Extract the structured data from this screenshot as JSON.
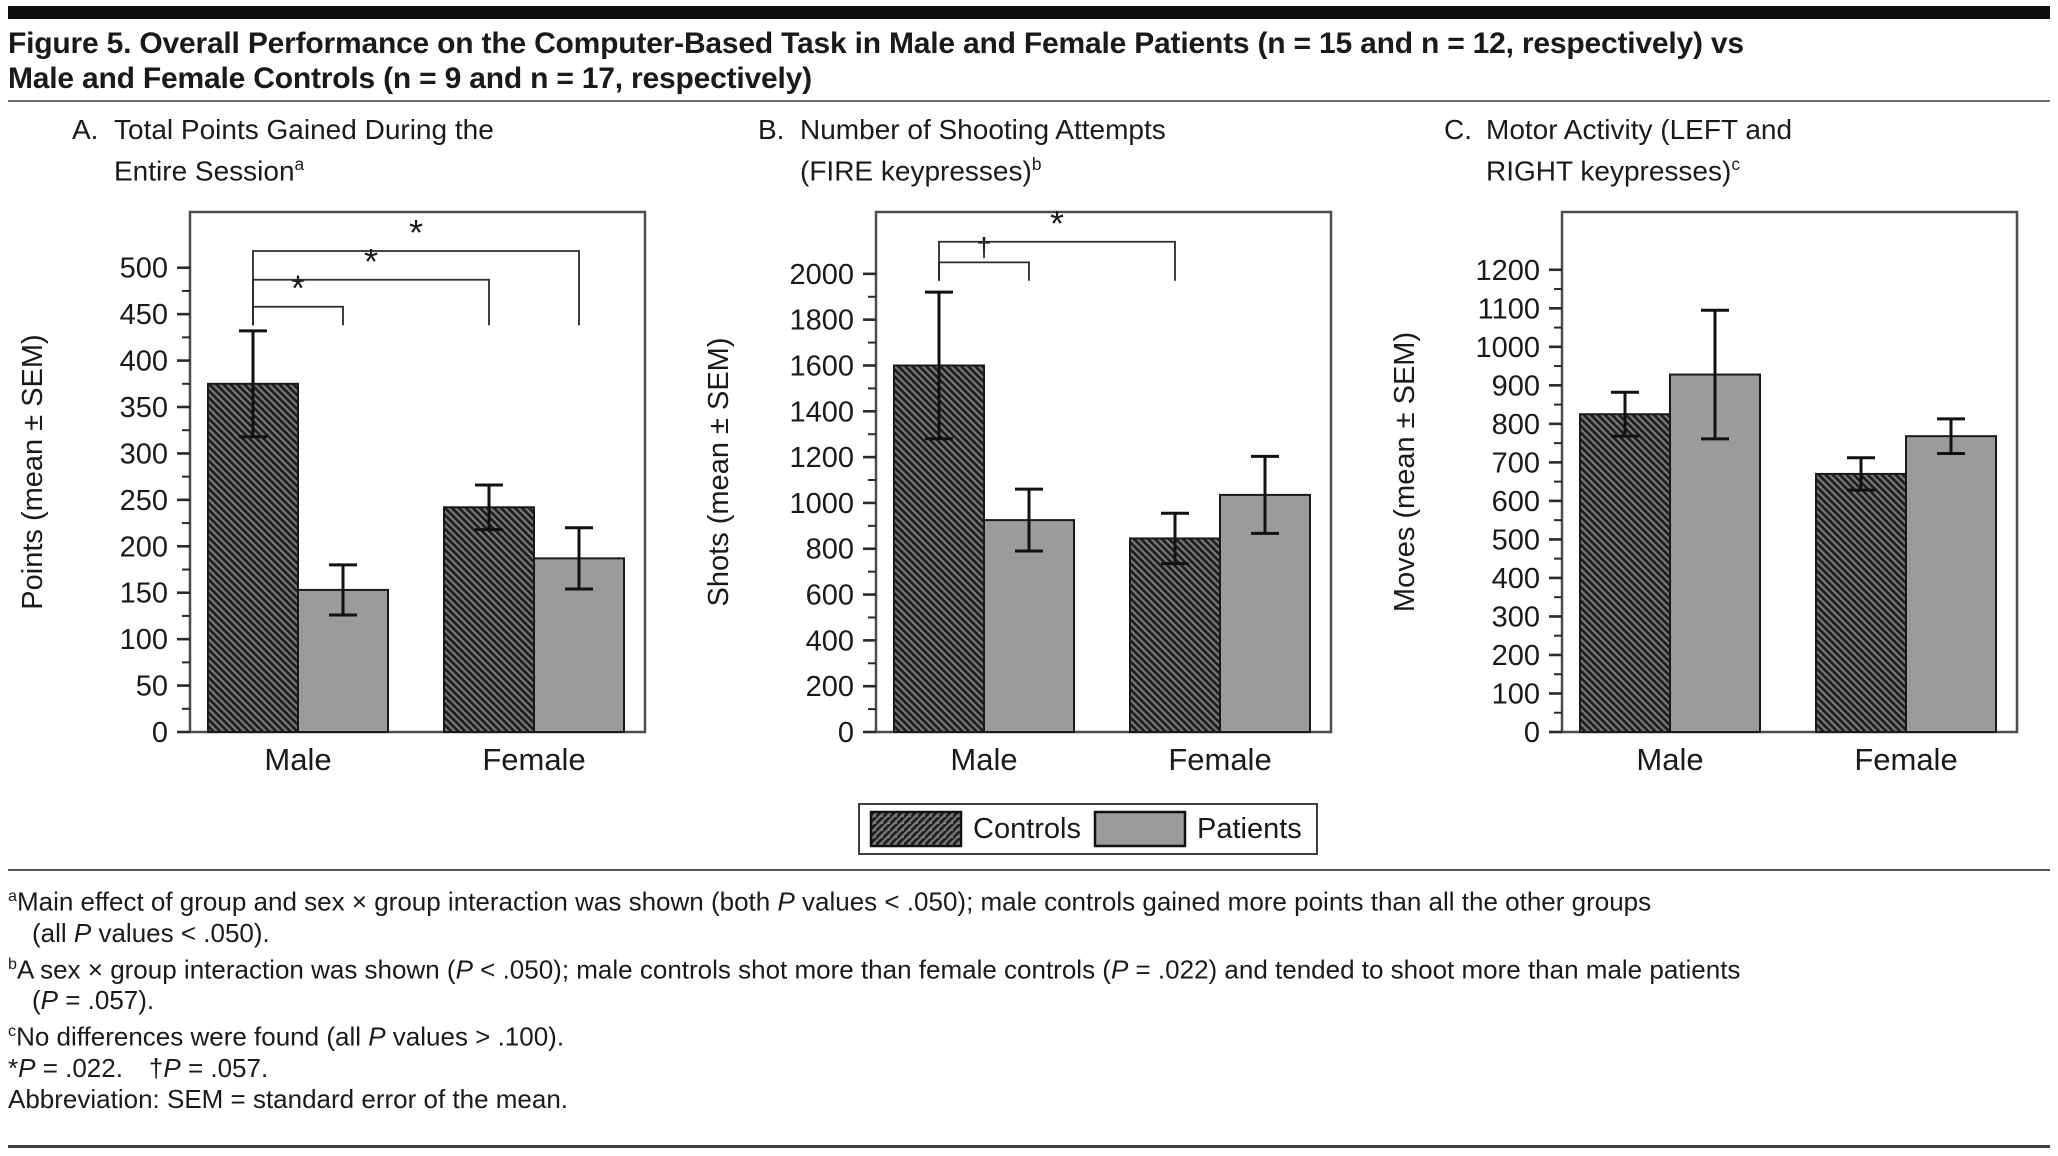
{
  "figure": {
    "title_line1": "Figure 5. Overall Performance on the Computer-Based Task in Male and Female Patients (n = 15 and n = 12, respectively) vs",
    "title_line2": "Male and Female Controls (n = 9 and n = 17, respectively)"
  },
  "colors": {
    "hatch_base": "#7a7a7a",
    "hatch_stripe": "#1f1f1f",
    "patients_fill": "#9b9b9b",
    "bar_border": "#1a1a1a",
    "frame": "#4d4d4d",
    "error_bar": "#111111",
    "bracket": "#2b2b2b"
  },
  "legend": {
    "items": [
      {
        "label": "Controls",
        "style": "hatched"
      },
      {
        "label": "Patients",
        "style": "solid"
      }
    ]
  },
  "chart_data": [
    {
      "id": "A",
      "type": "bar",
      "panel_label": "A.",
      "title_line1": "Total Points Gained During the",
      "title_line2": "Entire Session",
      "title_sup": "a",
      "ylabel": "Points (mean ± SEM)",
      "ylim": [
        0,
        560
      ],
      "ytick_max": 500,
      "ytick_step": 50,
      "yticks": [
        0,
        50,
        100,
        150,
        200,
        250,
        300,
        350,
        400,
        450,
        500
      ],
      "categories": [
        "Male",
        "Female"
      ],
      "series": [
        {
          "name": "Controls",
          "values": [
            375,
            242
          ],
          "sem": [
            57,
            24
          ]
        },
        {
          "name": "Patients",
          "values": [
            153,
            187
          ],
          "sem": [
            27,
            33
          ]
        }
      ],
      "bracket_base": 438,
      "brackets": [
        {
          "from": 0,
          "to": 1,
          "y": 458,
          "label": "*"
        },
        {
          "from": 0,
          "to": 2,
          "y": 487,
          "label": "*"
        },
        {
          "from": 0,
          "to": 3,
          "y": 518,
          "label": "*"
        }
      ]
    },
    {
      "id": "B",
      "type": "bar",
      "panel_label": "B.",
      "title_line1": "Number of Shooting Attempts",
      "title_line2": "(FIRE keypresses)",
      "title_sup": "b",
      "ylabel": "Shots (mean ± SEM)",
      "ylim": [
        0,
        2270
      ],
      "ytick_max": 2000,
      "ytick_step": 200,
      "yticks": [
        0,
        200,
        400,
        600,
        800,
        1000,
        1200,
        1400,
        1600,
        1800,
        2000
      ],
      "categories": [
        "Male",
        "Female"
      ],
      "series": [
        {
          "name": "Controls",
          "values": [
            1600,
            845
          ],
          "sem": [
            320,
            110
          ]
        },
        {
          "name": "Patients",
          "values": [
            925,
            1035
          ],
          "sem": [
            135,
            168
          ]
        }
      ],
      "bracket_base": 1970,
      "brackets": [
        {
          "from": 0,
          "to": 1,
          "y": 2050,
          "label": "†"
        },
        {
          "from": 0,
          "to": 2,
          "y": 2140,
          "label": "*"
        }
      ]
    },
    {
      "id": "C",
      "type": "bar",
      "panel_label": "C.",
      "title_line1": "Motor Activity (LEFT and",
      "title_line2": "RIGHT keypresses)",
      "title_sup": "c",
      "ylabel": "Moves (mean ± SEM)",
      "ylim": [
        0,
        1350
      ],
      "ytick_max": 1200,
      "ytick_step": 100,
      "yticks": [
        0,
        100,
        200,
        300,
        400,
        500,
        600,
        700,
        800,
        900,
        1000,
        1100,
        1200
      ],
      "categories": [
        "Male",
        "Female"
      ],
      "series": [
        {
          "name": "Controls",
          "values": [
            825,
            670
          ],
          "sem": [
            57,
            42
          ]
        },
        {
          "name": "Patients",
          "values": [
            928,
            768
          ],
          "sem": [
            167,
            45
          ]
        }
      ],
      "bracket_base": null,
      "brackets": []
    }
  ],
  "footnotes": [
    {
      "sup": "a",
      "lines": [
        "Main effect of group and sex × group interaction was shown (both P values < .050); male controls gained more points than all the other groups",
        "(all P values < .050)."
      ]
    },
    {
      "sup": "b",
      "lines": [
        "A sex × group interaction was shown (P < .050); male controls shot more than female controls (P = .022) and tended to shoot more than male patients",
        "(P = .057)."
      ]
    },
    {
      "sup": "c",
      "lines": [
        "No differences were found (all P values > .100)."
      ]
    },
    {
      "sup": "",
      "lines": [
        "*P = .022. †P = .057."
      ]
    },
    {
      "sup": "",
      "lines": [
        "Abbreviation: SEM = standard error of the mean."
      ]
    }
  ]
}
